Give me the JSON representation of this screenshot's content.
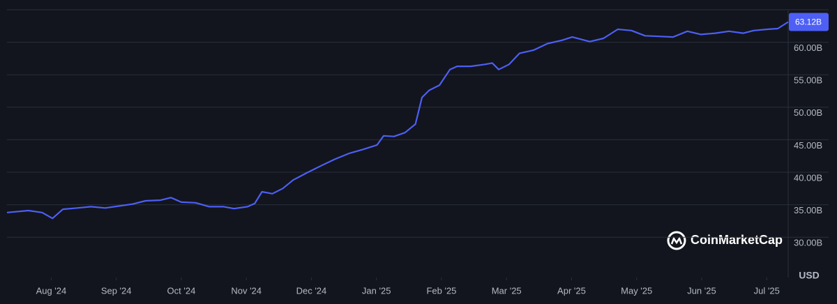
{
  "chart_data": {
    "type": "line",
    "series": [
      {
        "color": "#4d5ff5",
        "x": [
          -0.68,
          -0.35,
          -0.14,
          0.02,
          0.18,
          0.4,
          0.61,
          0.83,
          1.04,
          1.25,
          1.45,
          1.68,
          1.84,
          2.0,
          2.22,
          2.43,
          2.65,
          2.81,
          3.02,
          3.13,
          3.24,
          3.4,
          3.56,
          3.72,
          3.93,
          4.15,
          4.36,
          4.58,
          4.79,
          5.01,
          5.11,
          5.27,
          5.44,
          5.6,
          5.7,
          5.81,
          5.97,
          6.13,
          6.24,
          6.45,
          6.67,
          6.78,
          6.88,
          7.04,
          7.2,
          7.42,
          7.63,
          7.85,
          8.01,
          8.28,
          8.49,
          8.71,
          8.92,
          9.13,
          9.35,
          9.56,
          9.78,
          9.99,
          10.21,
          10.42,
          10.64,
          10.8,
          11.01,
          11.17,
          11.33
        ],
        "values": [
          33.8,
          34.1,
          33.8,
          32.9,
          34.3,
          34.5,
          34.7,
          34.5,
          34.8,
          35.1,
          35.6,
          35.7,
          36.1,
          35.4,
          35.3,
          34.7,
          34.7,
          34.4,
          34.7,
          35.2,
          37.0,
          36.7,
          37.5,
          38.8,
          39.9,
          41.0,
          42.0,
          42.9,
          43.5,
          44.2,
          45.6,
          45.5,
          46.1,
          47.4,
          51.5,
          52.6,
          53.4,
          55.8,
          56.3,
          56.3,
          56.6,
          56.8,
          55.8,
          56.6,
          58.3,
          58.8,
          59.8,
          60.3,
          60.8,
          60.1,
          60.6,
          62.0,
          61.8,
          61.0,
          60.9,
          60.8,
          61.7,
          61.2,
          61.4,
          61.7,
          61.4,
          61.8,
          62.0,
          62.1,
          63.12
        ]
      }
    ],
    "current_value": {
      "value": 63.12,
      "label": "63.12B"
    },
    "xlim": [
      -0.68,
      11.33
    ],
    "xticks": [
      {
        "value": 0,
        "label": "Aug '24"
      },
      {
        "value": 1,
        "label": "Sep '24"
      },
      {
        "value": 2,
        "label": "Oct '24"
      },
      {
        "value": 3,
        "label": "Nov '24"
      },
      {
        "value": 4,
        "label": "Dec '24"
      },
      {
        "value": 5,
        "label": "Jan '25"
      },
      {
        "value": 6,
        "label": "Feb '25"
      },
      {
        "value": 7,
        "label": "Mar '25"
      },
      {
        "value": 8,
        "label": "Apr '25"
      },
      {
        "value": 9,
        "label": "May '25"
      },
      {
        "value": 10,
        "label": "Jun '25"
      },
      {
        "value": 11,
        "label": "Jul '25"
      }
    ],
    "ylim": [
      23.8,
      65
    ],
    "yticks": [
      {
        "value": 30,
        "label": "30.00B"
      },
      {
        "value": 35,
        "label": "35.00B"
      },
      {
        "value": 40,
        "label": "40.00B"
      },
      {
        "value": 45,
        "label": "45.00B"
      },
      {
        "value": 50,
        "label": "50.00B"
      },
      {
        "value": 55,
        "label": "55.00B"
      },
      {
        "value": 60,
        "label": "60.00B"
      }
    ],
    "grid": true,
    "currency": "USD",
    "watermark": "CoinMarketCap"
  }
}
